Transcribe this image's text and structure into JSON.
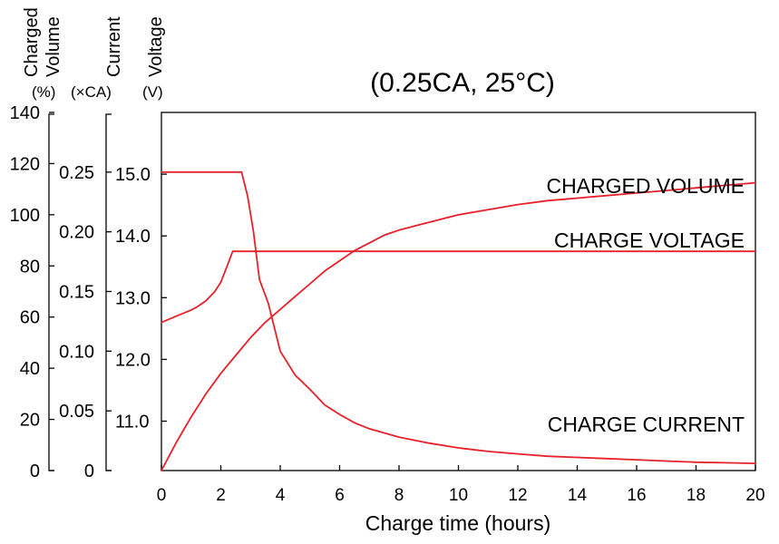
{
  "colors": {
    "curve": "#e8202a",
    "axis": "#000000",
    "background": "#ffffff"
  },
  "chart_data": {
    "type": "line",
    "title": "(0.25CA, 25°C)",
    "xlabel": "Charge time (hours)",
    "xlim": [
      0,
      20
    ],
    "x_ticks": [
      "0",
      "2",
      "4",
      "6",
      "8",
      "10",
      "12",
      "14",
      "16",
      "18",
      "20"
    ],
    "grid": false,
    "legend": "none (series labelled directly on curves)",
    "y_axes": [
      {
        "key": "volume",
        "header": [
          "Charged",
          "Volume"
        ],
        "unit": "(%)",
        "ylim": [
          0,
          140
        ],
        "ticks": [
          "0",
          "20",
          "40",
          "60",
          "80",
          "100",
          "120",
          "140"
        ]
      },
      {
        "key": "current",
        "header": [
          "Current"
        ],
        "unit": "(×CA)",
        "ylim": [
          0,
          0.3
        ],
        "ticks": [
          "0",
          "0.05",
          "0.10",
          "0.15",
          "0.20",
          "0.25"
        ]
      },
      {
        "key": "voltage",
        "header": [
          "Voltage"
        ],
        "unit": "(V)",
        "ylim": [
          10.2,
          16.0
        ],
        "ticks": [
          "11.0",
          "12.0",
          "13.0",
          "14.0",
          "15.0"
        ]
      }
    ],
    "series": [
      {
        "name": "CHARGED VOLUME",
        "axis": "volume",
        "x": [
          0,
          0.5,
          1,
          1.5,
          2,
          2.5,
          3,
          3.5,
          4,
          4.5,
          5,
          5.5,
          6,
          6.5,
          7,
          7.5,
          8,
          9,
          10,
          11,
          12,
          13,
          14,
          15,
          16,
          17,
          18,
          19,
          20
        ],
        "y": [
          0,
          11,
          21,
          30,
          38,
          45,
          52,
          58,
          63,
          68,
          73,
          78,
          82,
          86,
          89,
          92,
          94,
          97,
          100,
          102,
          104,
          105.5,
          106.5,
          107.5,
          108.5,
          109.5,
          110.5,
          111.5,
          112.5
        ]
      },
      {
        "name": "CHARGE VOLTAGE",
        "axis": "voltage",
        "x": [
          0,
          0.5,
          1,
          1.2,
          1.5,
          1.8,
          2,
          2.2,
          2.4,
          3,
          4,
          6,
          8,
          10,
          12,
          14,
          16,
          18,
          20
        ],
        "y": [
          12.6,
          12.7,
          12.8,
          12.85,
          12.95,
          13.1,
          13.25,
          13.5,
          13.75,
          13.75,
          13.75,
          13.75,
          13.75,
          13.75,
          13.75,
          13.75,
          13.75,
          13.75,
          13.75
        ]
      },
      {
        "name": "CHARGE CURRENT",
        "axis": "current",
        "x": [
          0,
          1,
          2,
          2.7,
          2.9,
          3.1,
          3.3,
          3.6,
          4,
          4.5,
          5,
          5.5,
          6,
          6.5,
          7,
          8,
          9,
          10,
          11,
          12,
          13,
          14,
          15,
          16,
          17,
          18,
          19,
          20
        ],
        "y": [
          0.25,
          0.25,
          0.25,
          0.25,
          0.23,
          0.2,
          0.16,
          0.14,
          0.1,
          0.08,
          0.068,
          0.055,
          0.047,
          0.04,
          0.035,
          0.028,
          0.023,
          0.019,
          0.016,
          0.014,
          0.012,
          0.011,
          0.01,
          0.009,
          0.008,
          0.007,
          0.0065,
          0.006
        ]
      }
    ]
  }
}
